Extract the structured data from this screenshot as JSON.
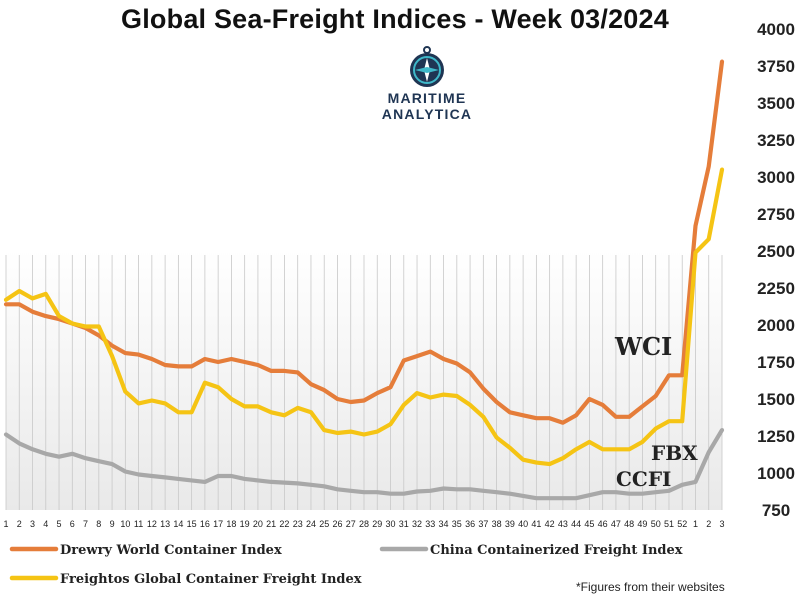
{
  "title": "Global Sea-Freight Indices -  Week 03/2024",
  "logo": {
    "line1": "MARITIME",
    "line2": "ANALYTICA"
  },
  "footnote": "*Figures from their websites",
  "colors": {
    "wci": "#e57d3a",
    "fbx": "#f5c414",
    "ccfi": "#a8a8a8"
  },
  "chart_data": {
    "type": "line",
    "title": "Global Sea-Freight Indices -  Week 03/2024",
    "xlabel": "",
    "ylabel": "",
    "ylim": [
      750,
      4000
    ],
    "yticks": [
      750,
      1000,
      1250,
      1500,
      1750,
      2000,
      2250,
      2500,
      2750,
      3000,
      3250,
      3500,
      3750,
      4000
    ],
    "categories": [
      "1",
      "2",
      "3",
      "4",
      "5",
      "6",
      "7",
      "8",
      "9",
      "10",
      "11",
      "12",
      "13",
      "14",
      "15",
      "16",
      "17",
      "18",
      "19",
      "20",
      "21",
      "22",
      "23",
      "24",
      "25",
      "26",
      "27",
      "28",
      "29",
      "30",
      "31",
      "32",
      "33",
      "34",
      "35",
      "36",
      "37",
      "38",
      "39",
      "40",
      "41",
      "42",
      "43",
      "44",
      "45",
      "46",
      "47",
      "48",
      "49",
      "50",
      "51",
      "52",
      "1",
      "2",
      "3"
    ],
    "series": [
      {
        "name": "Drewry World Container Index",
        "label": "WCI",
        "color": "#e57d3a",
        "values": [
          2140,
          2140,
          2090,
          2060,
          2040,
          2010,
          1980,
          1930,
          1860,
          1810,
          1800,
          1770,
          1730,
          1720,
          1720,
          1770,
          1750,
          1770,
          1750,
          1730,
          1690,
          1690,
          1680,
          1600,
          1560,
          1500,
          1480,
          1490,
          1540,
          1580,
          1760,
          1790,
          1820,
          1770,
          1740,
          1680,
          1570,
          1480,
          1410,
          1390,
          1370,
          1370,
          1340,
          1390,
          1500,
          1460,
          1380,
          1380,
          1450,
          1520,
          1660,
          1660,
          2670,
          3070,
          3780
        ]
      },
      {
        "name": "Freightos Global Container Freight Index",
        "label": "FBX",
        "color": "#f5c414",
        "values": [
          2170,
          2230,
          2180,
          2210,
          2060,
          2010,
          1990,
          1990,
          1790,
          1550,
          1470,
          1490,
          1470,
          1410,
          1410,
          1610,
          1580,
          1500,
          1450,
          1450,
          1410,
          1390,
          1440,
          1410,
          1290,
          1270,
          1280,
          1260,
          1280,
          1330,
          1460,
          1540,
          1510,
          1530,
          1520,
          1460,
          1380,
          1240,
          1170,
          1090,
          1070,
          1060,
          1100,
          1160,
          1210,
          1160,
          1160,
          1160,
          1210,
          1300,
          1350,
          1350,
          2490,
          2580,
          3050
        ]
      },
      {
        "name": "China Containerized Freight Index",
        "label": "CCFI",
        "color": "#a8a8a8",
        "values": [
          1260,
          1200,
          1160,
          1130,
          1110,
          1130,
          1100,
          1080,
          1060,
          1010,
          990,
          980,
          970,
          960,
          950,
          940,
          980,
          980,
          960,
          950,
          940,
          935,
          930,
          920,
          910,
          890,
          880,
          870,
          870,
          860,
          860,
          875,
          880,
          895,
          890,
          890,
          880,
          870,
          860,
          845,
          830,
          830,
          830,
          830,
          850,
          870,
          870,
          860,
          860,
          870,
          880,
          920,
          940,
          1140,
          1290
        ]
      }
    ],
    "annotations": [
      "WCI",
      "FBX",
      "CCFI"
    ],
    "grid": "vertical",
    "legend": "bottom"
  }
}
